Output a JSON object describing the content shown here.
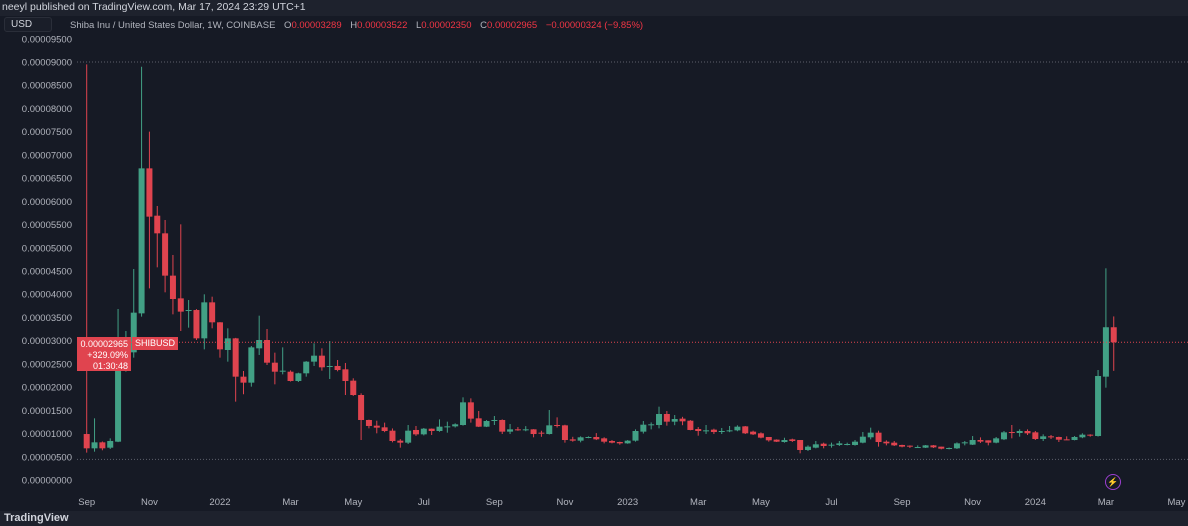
{
  "header": {
    "published": "neeyl published on TradingView.com, Mar 17, 2024 23:29 UTC+1"
  },
  "currency_button": "USD",
  "legend": {
    "symbol": "Shiba Inu / United States Dollar, 1W, COINBASE",
    "o_label": "O",
    "o": "0.00003289",
    "h_label": "H",
    "h": "0.00003522",
    "l_label": "L",
    "l": "0.00002350",
    "c_label": "C",
    "c": "0.00002965",
    "change": "−0.00000324 (−9.85%)"
  },
  "price_label": {
    "price": "0.00002965",
    "change_pct": "+329.09%",
    "countdown": "01:30:48",
    "symbol": "SHIBUSD"
  },
  "footer": {
    "logo": "TradingView"
  },
  "icons": {
    "bolt": "lightning-icon"
  },
  "colors": {
    "up": "#42a085",
    "down": "#e0444f",
    "background": "#161a25",
    "grid_dots": "#5d606b"
  },
  "chart_data": {
    "type": "candlestick",
    "interval": "1W",
    "ylim": [
      0,
      9e-05
    ],
    "y_ticks": [
      "0.00000000",
      "0.00000500",
      "0.00001000",
      "0.00001500",
      "0.00002000",
      "0.00002500",
      "0.00003000",
      "0.00003500",
      "0.00004000",
      "0.00004500",
      "0.00005000",
      "0.00005500",
      "0.00006000",
      "0.00006500",
      "0.00007000",
      "0.00007500",
      "0.00008000",
      "0.00008500",
      "0.00009000",
      "0.00009500"
    ],
    "x_ticks": [
      {
        "label": "Sep",
        "date": "2021-09-06"
      },
      {
        "label": "Nov",
        "date": "2021-11-01"
      },
      {
        "label": "2022",
        "date": "2022-01-03"
      },
      {
        "label": "Mar",
        "date": "2022-03-07"
      },
      {
        "label": "May",
        "date": "2022-05-02"
      },
      {
        "label": "Jul",
        "date": "2022-07-04"
      },
      {
        "label": "Sep",
        "date": "2022-09-05"
      },
      {
        "label": "Nov",
        "date": "2022-11-07"
      },
      {
        "label": "2023",
        "date": "2023-01-02"
      },
      {
        "label": "Mar",
        "date": "2023-03-06"
      },
      {
        "label": "May",
        "date": "2023-05-01"
      },
      {
        "label": "Jul",
        "date": "2023-07-03"
      },
      {
        "label": "Sep",
        "date": "2023-09-04"
      },
      {
        "label": "Nov",
        "date": "2023-11-06"
      },
      {
        "label": "2024",
        "date": "2024-01-01"
      },
      {
        "label": "Mar",
        "date": "2024-03-04"
      },
      {
        "label": "May",
        "date": "2024-05-06"
      }
    ],
    "columns": [
      "date",
      "open",
      "high",
      "low",
      "close"
    ],
    "candles": [
      [
        "2021-09-06",
        9.9e-06,
        8.95e-05,
        5.89e-06,
        6.82e-06
      ],
      [
        "2021-09-13",
        6.82e-06,
        1.328e-05,
        6.1e-06,
        8.11e-06
      ],
      [
        "2021-09-20",
        8.11e-06,
        8.3e-06,
        6.4e-06,
        6.82e-06
      ],
      [
        "2021-09-27",
        6.96e-06,
        8.97e-06,
        6.68e-06,
        8.4e-06
      ],
      [
        "2021-10-04",
        8.25e-06,
        3.682e-05,
        8.15e-06,
        2.605e-05
      ],
      [
        "2021-10-11",
        2.605e-05,
        3.208e-05,
        2.332e-05,
        2.763e-05
      ],
      [
        "2021-10-18",
        2.749e-05,
        4.543e-05,
        2.634e-05,
        3.603e-05
      ],
      [
        "2021-10-25",
        3.588e-05,
        8.899e-05,
        3.517e-05,
        6.71e-05
      ],
      [
        "2021-11-01",
        6.71e-05,
        7.5e-05,
        4.127e-05,
        5.67e-05
      ],
      [
        "2021-11-08",
        5.691e-05,
        5.9e-05,
        4.579e-05,
        5.311e-05
      ],
      [
        "2021-11-15",
        5.311e-05,
        5.598e-05,
        4.041e-05,
        4.4e-05
      ],
      [
        "2021-11-22",
        4.4e-05,
        4.845e-05,
        3.567e-05,
        3.897e-05
      ],
      [
        "2021-11-29",
        3.911e-05,
        5.505e-05,
        3.208e-05,
        3.625e-05
      ],
      [
        "2021-12-06",
        3.64e-05,
        3.875e-05,
        3.28e-05,
        3.66e-05
      ],
      [
        "2021-12-13",
        3.66e-05,
        3.68e-05,
        3.014e-05,
        3.05e-05
      ],
      [
        "2021-12-20",
        3.05e-05,
        3.998e-05,
        2.813e-05,
        3.825e-05
      ],
      [
        "2021-12-27",
        3.825e-05,
        3.947e-05,
        3.266e-05,
        3.395e-05
      ],
      [
        "2022-01-03",
        3.395e-05,
        3.4e-05,
        2.634e-05,
        2.813e-05
      ],
      [
        "2022-01-10",
        2.799e-05,
        3.266e-05,
        2.548e-05,
        3.05e-05
      ],
      [
        "2022-01-17",
        3.05e-05,
        3.06e-05,
        1.687e-05,
        2.225e-05
      ],
      [
        "2022-01-24",
        2.225e-05,
        2.347e-05,
        1.845e-05,
        2.096e-05
      ],
      [
        "2022-01-31",
        2.096e-05,
        2.885e-05,
        2.01e-05,
        2.856e-05
      ],
      [
        "2022-02-07",
        2.835e-05,
        3.538e-05,
        2.692e-05,
        3.014e-05
      ],
      [
        "2022-02-14",
        3.014e-05,
        3.251e-05,
        2.476e-05,
        2.526e-05
      ],
      [
        "2022-02-21",
        2.526e-05,
        2.742e-05,
        2.06e-05,
        2.332e-05
      ],
      [
        "2022-02-28",
        2.332e-05,
        2.856e-05,
        2.275e-05,
        2.354e-05
      ],
      [
        "2022-03-07",
        2.332e-05,
        2.36e-05,
        2.12e-05,
        2.132e-05
      ],
      [
        "2022-03-14",
        2.132e-05,
        2.31e-05,
        2.11e-05,
        2.297e-05
      ],
      [
        "2022-03-21",
        2.297e-05,
        2.56e-05,
        2.225e-05,
        2.548e-05
      ],
      [
        "2022-03-28",
        2.548e-05,
        2.943e-05,
        2.455e-05,
        2.677e-05
      ],
      [
        "2022-04-04",
        2.677e-05,
        2.835e-05,
        2.354e-05,
        2.426e-05
      ],
      [
        "2022-04-11",
        2.44e-05,
        2.993e-05,
        2.175e-05,
        2.455e-05
      ],
      [
        "2022-04-18",
        2.455e-05,
        2.584e-05,
        2.34e-05,
        2.368e-05
      ],
      [
        "2022-04-25",
        2.383e-05,
        2.52e-05,
        1.83e-05,
        2.132e-05
      ],
      [
        "2022-05-02",
        2.139e-05,
        2.19e-05,
        1.81e-05,
        1.83e-05
      ],
      [
        "2022-05-09",
        1.83e-05,
        1.866e-05,
        8.61e-06,
        1.292e-05
      ],
      [
        "2022-05-16",
        1.292e-05,
        1.3e-05,
        1.112e-05,
        1.163e-05
      ],
      [
        "2022-05-23",
        1.17e-05,
        1.277e-05,
        1.005e-05,
        1.127e-05
      ],
      [
        "2022-05-30",
        1.134e-05,
        1.235e-05,
        1.03e-05,
        1.055e-05
      ],
      [
        "2022-06-06",
        1.062e-05,
        1.11e-05,
        8.11e-06,
        8.4e-06
      ],
      [
        "2022-06-13",
        8.47e-06,
        8.8e-06,
        6.96e-06,
        8.04e-06
      ],
      [
        "2022-06-20",
        8.04e-06,
        1.184e-05,
        7.75e-06,
        1.062e-05
      ],
      [
        "2022-06-27",
        1.077e-05,
        1.163e-05,
        9.5e-06,
        9.83e-06
      ],
      [
        "2022-07-04",
        9.83e-06,
        1.12e-05,
        9.6e-06,
        1.105e-05
      ],
      [
        "2022-07-11",
        1.105e-05,
        1.11e-05,
        9.69e-06,
        1.055e-05
      ],
      [
        "2022-07-18",
        1.055e-05,
        1.306e-05,
        1.04e-05,
        1.148e-05
      ],
      [
        "2022-07-25",
        1.148e-05,
        1.256e-05,
        1.019e-05,
        1.155e-05
      ],
      [
        "2022-08-01",
        1.155e-05,
        1.22e-05,
        1.13e-05,
        1.199e-05
      ],
      [
        "2022-08-08",
        1.184e-05,
        1.78e-05,
        1.17e-05,
        1.672e-05
      ],
      [
        "2022-08-15",
        1.672e-05,
        1.758e-05,
        1.235e-05,
        1.321e-05
      ],
      [
        "2022-08-22",
        1.328e-05,
        1.486e-05,
        1.14e-05,
        1.148e-05
      ],
      [
        "2022-08-29",
        1.148e-05,
        1.29e-05,
        1.14e-05,
        1.27e-05
      ],
      [
        "2022-09-05",
        1.285e-05,
        1.378e-05,
        1.184e-05,
        1.292e-05
      ],
      [
        "2022-09-12",
        1.292e-05,
        1.305e-05,
        9.9e-06,
        1.041e-05
      ],
      [
        "2022-09-19",
        1.041e-05,
        1.206e-05,
        9.9e-06,
        1.091e-05
      ],
      [
        "2022-09-26",
        1.091e-05,
        1.14e-05,
        1.06e-05,
        1.077e-05
      ],
      [
        "2022-10-03",
        1.084e-05,
        1.16e-05,
        1.05e-05,
        1.091e-05
      ],
      [
        "2022-10-10",
        1.091e-05,
        1.095e-05,
        9.19e-06,
        9.9e-06
      ],
      [
        "2022-10-17",
        1.019e-05,
        1.06e-05,
        9.3e-06,
        1.005e-05
      ],
      [
        "2022-10-24",
        9.9e-06,
        1.507e-05,
        9.8e-06,
        1.177e-05
      ],
      [
        "2022-10-31",
        1.184e-05,
        1.349e-05,
        1.13e-05,
        1.17e-05
      ],
      [
        "2022-11-07",
        1.177e-05,
        1.19e-05,
        8.04e-06,
        8.61e-06
      ],
      [
        "2022-11-14",
        8.75e-06,
        9.3e-06,
        8.25e-06,
        8.47e-06
      ],
      [
        "2022-11-21",
        8.47e-06,
        9.4e-06,
        8.11e-06,
        9.19e-06
      ],
      [
        "2022-11-28",
        9.15e-06,
        9.4e-06,
        9e-06,
        9.26e-06
      ],
      [
        "2022-12-05",
        9.26e-06,
        1.01e-05,
        8.6e-06,
        8.76e-06
      ],
      [
        "2022-12-12",
        8.97e-06,
        9.2e-06,
        7.89e-06,
        8.25e-06
      ],
      [
        "2022-12-19",
        8.4e-06,
        8.6e-06,
        7.89e-06,
        8.04e-06
      ],
      [
        "2022-12-26",
        8.18e-06,
        8.25e-06,
        7.6e-06,
        7.89e-06
      ],
      [
        "2023-01-02",
        7.89e-06,
        8.6e-06,
        7.8e-06,
        8.47e-06
      ],
      [
        "2023-01-09",
        8.47e-06,
        1.09e-05,
        8.25e-06,
        1.055e-05
      ],
      [
        "2023-01-16",
        1.041e-05,
        1.27e-05,
        1e-05,
        1.191e-05
      ],
      [
        "2023-01-23",
        1.191e-05,
        1.24e-05,
        1.09e-05,
        1.199e-05
      ],
      [
        "2023-01-30",
        1.184e-05,
        1.579e-05,
        1.112e-05,
        1.421e-05
      ],
      [
        "2023-02-06",
        1.421e-05,
        1.486e-05,
        1.17e-05,
        1.256e-05
      ],
      [
        "2023-02-13",
        1.256e-05,
        1.399e-05,
        1.18e-05,
        1.313e-05
      ],
      [
        "2023-02-20",
        1.321e-05,
        1.36e-05,
        1.18e-05,
        1.263e-05
      ],
      [
        "2023-02-27",
        1.277e-05,
        1.29e-05,
        1.07e-05,
        1.077e-05
      ],
      [
        "2023-03-06",
        1.098e-05,
        1.14e-05,
        9.54e-06,
        1.055e-05
      ],
      [
        "2023-03-13",
        1.055e-05,
        1.184e-05,
        9.9e-06,
        1.069e-05
      ],
      [
        "2023-03-20",
        1.084e-05,
        1.105e-05,
        9.9e-06,
        1.033e-05
      ],
      [
        "2023-03-27",
        1.041e-05,
        1.12e-05,
        9.9e-06,
        1.055e-05
      ],
      [
        "2023-04-03",
        1.055e-05,
        1.163e-05,
        1.03e-05,
        1.069e-05
      ],
      [
        "2023-04-10",
        1.069e-05,
        1.177e-05,
        1.05e-05,
        1.148e-05
      ],
      [
        "2023-04-17",
        1.155e-05,
        1.163e-05,
        9.9e-06,
        1.005e-05
      ],
      [
        "2023-04-24",
        1.041e-05,
        1.062e-05,
        9.69e-06,
        9.83e-06
      ],
      [
        "2023-05-01",
        1.005e-05,
        1.026e-05,
        8.97e-06,
        9.12e-06
      ],
      [
        "2023-05-08",
        9.26e-06,
        9.26e-06,
        8.26e-06,
        8.54e-06
      ],
      [
        "2023-05-15",
        8.69e-06,
        8.75e-06,
        8.18e-06,
        8.25e-06
      ],
      [
        "2023-05-22",
        8.18e-06,
        9.1e-06,
        8.04e-06,
        8.61e-06
      ],
      [
        "2023-05-29",
        8.75e-06,
        8.9e-06,
        8.18e-06,
        8.4e-06
      ],
      [
        "2023-06-05",
        8.61e-06,
        8.61e-06,
        5.74e-06,
        6.46e-06
      ],
      [
        "2023-06-12",
        6.46e-06,
        7.46e-06,
        6.24e-06,
        7.18e-06
      ],
      [
        "2023-06-19",
        6.96e-06,
        8.4e-06,
        6.82e-06,
        7.68e-06
      ],
      [
        "2023-06-26",
        7.82e-06,
        8.04e-06,
        6.82e-06,
        7.32e-06
      ],
      [
        "2023-07-03",
        7.54e-06,
        8.04e-06,
        6.96e-06,
        7.61e-06
      ],
      [
        "2023-07-10",
        7.54e-06,
        8.4e-06,
        7.32e-06,
        7.89e-06
      ],
      [
        "2023-07-17",
        7.68e-06,
        8.04e-06,
        7.46e-06,
        7.75e-06
      ],
      [
        "2023-07-24",
        7.54e-06,
        8.61e-06,
        7.4e-06,
        8.25e-06
      ],
      [
        "2023-07-31",
        8.04e-06,
        1.033e-05,
        7.9e-06,
        9.33e-06
      ],
      [
        "2023-08-07",
        9.19e-06,
        1.127e-05,
        8.75e-06,
        1.019e-05
      ],
      [
        "2023-08-14",
        1.019e-05,
        1.062e-05,
        7.18e-06,
        8.18e-06
      ],
      [
        "2023-08-21",
        8.25e-06,
        8.54e-06,
        7.46e-06,
        7.89e-06
      ],
      [
        "2023-08-28",
        8.04e-06,
        8.4e-06,
        7.32e-06,
        7.46e-06
      ],
      [
        "2023-09-04",
        7.54e-06,
        7.6e-06,
        7.03e-06,
        7.18e-06
      ],
      [
        "2023-09-11",
        7.39e-06,
        7.46e-06,
        6.89e-06,
        7.18e-06
      ],
      [
        "2023-09-18",
        7.03e-06,
        7.46e-06,
        6.89e-06,
        7.1e-06
      ],
      [
        "2023-09-25",
        6.96e-06,
        7.54e-06,
        6.89e-06,
        7.46e-06
      ],
      [
        "2023-10-02",
        7.46e-06,
        7.54e-06,
        6.89e-06,
        7.03e-06
      ],
      [
        "2023-10-09",
        7.18e-06,
        7.18e-06,
        6.6e-06,
        6.74e-06
      ],
      [
        "2023-10-16",
        6.74e-06,
        7e-06,
        6.6e-06,
        6.89e-06
      ],
      [
        "2023-10-23",
        6.82e-06,
        8.1e-06,
        6.68e-06,
        7.89e-06
      ],
      [
        "2023-10-30",
        8.04e-06,
        8.4e-06,
        7.46e-06,
        8.11e-06
      ],
      [
        "2023-11-06",
        7.61e-06,
        9.47e-06,
        7.54e-06,
        8.61e-06
      ],
      [
        "2023-11-13",
        8.61e-06,
        9.18e-06,
        7.97e-06,
        8.26e-06
      ],
      [
        "2023-11-20",
        8.54e-06,
        8.54e-06,
        7.46e-06,
        8.04e-06
      ],
      [
        "2023-11-27",
        8.04e-06,
        9.26e-06,
        7.9e-06,
        8.97e-06
      ],
      [
        "2023-12-04",
        8.76e-06,
        1.055e-05,
        8.6e-06,
        1.026e-05
      ],
      [
        "2023-12-11",
        1.033e-05,
        1.184e-05,
        8.97e-06,
        1.019e-05
      ],
      [
        "2023-12-18",
        1.012e-05,
        1.091e-05,
        9.33e-06,
        1.055e-05
      ],
      [
        "2023-12-25",
        1.055e-05,
        1.091e-05,
        9.69e-06,
        1.005e-05
      ],
      [
        "2024-01-01",
        1.026e-05,
        1.055e-05,
        8.61e-06,
        8.83e-06
      ],
      [
        "2024-01-08",
        8.83e-06,
        9.83e-06,
        8.4e-06,
        9.4e-06
      ],
      [
        "2024-01-15",
        9.4e-06,
        9.69e-06,
        8.83e-06,
        9.18e-06
      ],
      [
        "2024-01-22",
        9.26e-06,
        9.33e-06,
        8.18e-06,
        8.68e-06
      ],
      [
        "2024-01-29",
        8.75e-06,
        9.4e-06,
        8.61e-06,
        8.68e-06
      ],
      [
        "2024-02-05",
        8.61e-06,
        9.47e-06,
        8.54e-06,
        9.26e-06
      ],
      [
        "2024-02-12",
        9.19e-06,
        1.005e-05,
        9e-06,
        9.76e-06
      ],
      [
        "2024-02-19",
        9.76e-06,
        9.85e-06,
        9.33e-06,
        9.69e-06
      ],
      [
        "2024-02-26",
        9.47e-06,
        2.368e-05,
        9.35e-06,
        2.239e-05
      ],
      [
        "2024-03-04",
        2.225e-05,
        4.558e-05,
        1.988e-05,
        3.289e-05
      ],
      [
        "2024-03-11",
        3.289e-05,
        3.522e-05,
        2.35e-05,
        2.965e-05
      ]
    ]
  }
}
